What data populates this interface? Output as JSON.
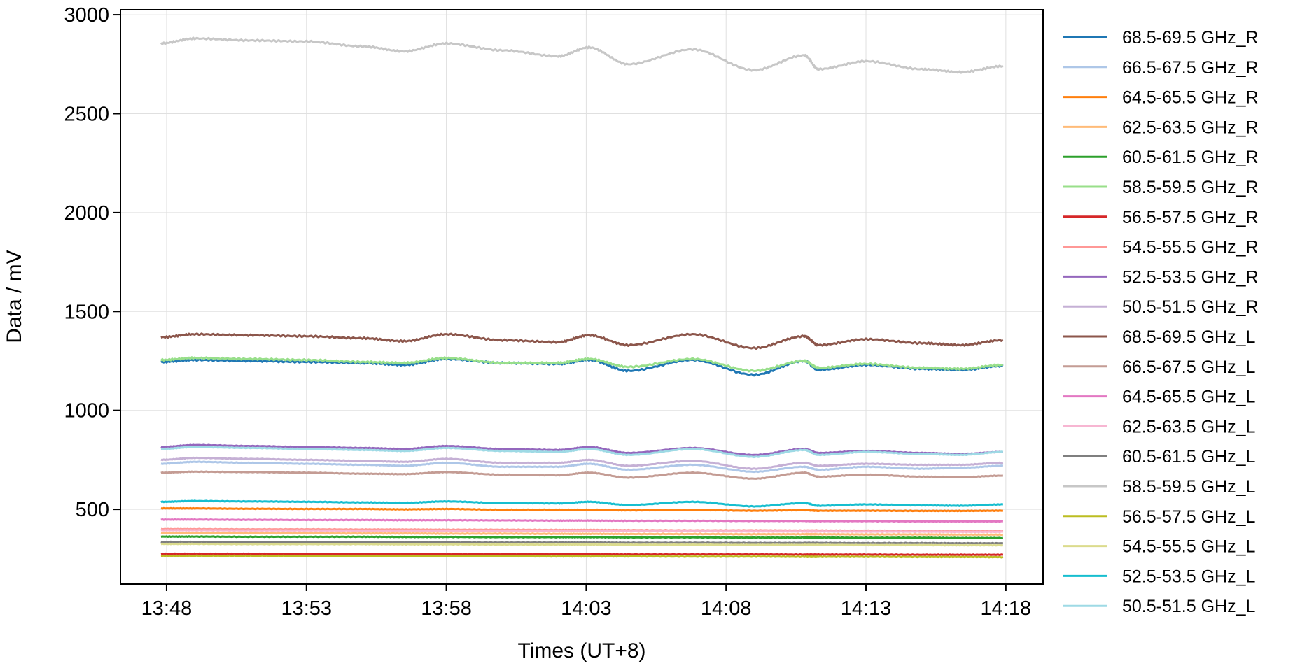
{
  "chart_data": {
    "type": "line",
    "title": "",
    "xlabel": "Times (UT+8)",
    "ylabel": "Data / mV",
    "x_unit": "minutes after 13:48",
    "xlim": [
      -1.65,
      31.33
    ],
    "ylim": [
      122,
      3025
    ],
    "grid": true,
    "legend_placement": "outside-right",
    "xticks": [
      {
        "value": 0,
        "label": "13:48"
      },
      {
        "value": 5,
        "label": "13:53"
      },
      {
        "value": 10,
        "label": "13:58"
      },
      {
        "value": 15,
        "label": "14:03"
      },
      {
        "value": 20,
        "label": "14:08"
      },
      {
        "value": 25,
        "label": "14:13"
      },
      {
        "value": 30,
        "label": "14:18"
      }
    ],
    "yticks": [
      {
        "value": 500,
        "label": "500"
      },
      {
        "value": 1000,
        "label": "1000"
      },
      {
        "value": 1500,
        "label": "1500"
      },
      {
        "value": 2000,
        "label": "2000"
      },
      {
        "value": 2500,
        "label": "2500"
      },
      {
        "value": 3000,
        "label": "3000"
      }
    ],
    "x": [
      -0.2,
      1,
      3,
      5,
      7,
      8.5,
      10,
      12,
      14,
      15.1,
      16.5,
      18.8,
      21,
      22.8,
      23.3,
      25,
      27,
      28.4,
      29.9
    ],
    "series": [
      {
        "name": "68.5-69.5 GHz_R",
        "color": "#1f77b4",
        "values": [
          1245,
          1255,
          1250,
          1245,
          1240,
          1230,
          1260,
          1240,
          1235,
          1255,
          1200,
          1255,
          1180,
          1250,
          1205,
          1230,
          1210,
          1205,
          1225
        ]
      },
      {
        "name": "66.5-67.5 GHz_R",
        "color": "#aec7e8",
        "values": [
          730,
          740,
          735,
          730,
          725,
          720,
          735,
          715,
          715,
          730,
          700,
          725,
          690,
          715,
          700,
          715,
          705,
          710,
          720
        ]
      },
      {
        "name": "64.5-65.5 GHz_R",
        "color": "#ff7f0e",
        "values": [
          505,
          505,
          503,
          502,
          502,
          500,
          502,
          498,
          498,
          498,
          495,
          497,
          493,
          496,
          493,
          493,
          492,
          492,
          493
        ]
      },
      {
        "name": "62.5-63.5 GHz_R",
        "color": "#ffbb78",
        "values": [
          380,
          380,
          379,
          379,
          378,
          378,
          377,
          377,
          376,
          376,
          375,
          375,
          374,
          374,
          374,
          373,
          373,
          372,
          372
        ]
      },
      {
        "name": "60.5-61.5 GHz_R",
        "color": "#2ca02c",
        "values": [
          362,
          362,
          361,
          361,
          361,
          360,
          360,
          359,
          359,
          359,
          358,
          358,
          357,
          357,
          357,
          356,
          356,
          355,
          355
        ]
      },
      {
        "name": "58.5-59.5 GHz_R",
        "color": "#98df8a",
        "values": [
          1255,
          1265,
          1260,
          1255,
          1245,
          1240,
          1265,
          1240,
          1240,
          1260,
          1220,
          1260,
          1200,
          1250,
          1215,
          1235,
          1215,
          1210,
          1230
        ]
      },
      {
        "name": "56.5-57.5 GHz_R",
        "color": "#d62728",
        "values": [
          275,
          275,
          275,
          274,
          274,
          274,
          273,
          273,
          273,
          273,
          272,
          272,
          272,
          271,
          271,
          271,
          270,
          270,
          270
        ]
      },
      {
        "name": "54.5-55.5 GHz_R",
        "color": "#ff9896",
        "values": [
          400,
          400,
          399,
          399,
          398,
          398,
          397,
          397,
          396,
          396,
          395,
          394,
          394,
          393,
          393,
          392,
          391,
          391,
          390
        ]
      },
      {
        "name": "52.5-53.5 GHz_R",
        "color": "#9467bd",
        "values": [
          815,
          825,
          820,
          815,
          810,
          805,
          820,
          805,
          800,
          815,
          785,
          810,
          775,
          805,
          785,
          795,
          785,
          780,
          790
        ]
      },
      {
        "name": "50.5-51.5 GHz_R",
        "color": "#c5b0d5",
        "values": [
          750,
          760,
          755,
          750,
          745,
          740,
          755,
          735,
          735,
          750,
          720,
          745,
          705,
          735,
          720,
          730,
          725,
          725,
          735
        ]
      },
      {
        "name": "68.5-69.5 GHz_L",
        "color": "#8c564b",
        "values": [
          1370,
          1385,
          1380,
          1375,
          1365,
          1350,
          1385,
          1355,
          1345,
          1380,
          1330,
          1385,
          1315,
          1375,
          1330,
          1360,
          1340,
          1330,
          1355
        ]
      },
      {
        "name": "66.5-67.5 GHz_L",
        "color": "#c49c94",
        "values": [
          685,
          690,
          688,
          685,
          680,
          678,
          688,
          675,
          672,
          685,
          660,
          685,
          655,
          685,
          665,
          675,
          665,
          663,
          670
        ]
      },
      {
        "name": "64.5-65.5 GHz_L",
        "color": "#e377c2",
        "values": [
          448,
          448,
          447,
          446,
          446,
          445,
          445,
          444,
          443,
          443,
          442,
          442,
          441,
          441,
          440,
          440,
          439,
          439,
          439
        ]
      },
      {
        "name": "62.5-63.5 GHz_L",
        "color": "#f7b6d2",
        "values": [
          394,
          394,
          393,
          393,
          392,
          392,
          391,
          391,
          390,
          390,
          389,
          389,
          388,
          388,
          388,
          387,
          387,
          386,
          386
        ]
      },
      {
        "name": "60.5-61.5 GHz_L",
        "color": "#7f7f7f",
        "values": [
          335,
          335,
          334,
          334,
          334,
          333,
          333,
          332,
          332,
          332,
          331,
          331,
          330,
          330,
          330,
          329,
          329,
          328,
          328
        ]
      },
      {
        "name": "58.5-59.5 GHz_L",
        "color": "#c7c7c7",
        "values": [
          2855,
          2880,
          2870,
          2865,
          2840,
          2815,
          2855,
          2820,
          2790,
          2835,
          2750,
          2825,
          2720,
          2795,
          2725,
          2765,
          2725,
          2710,
          2740
        ]
      },
      {
        "name": "56.5-57.5 GHz_L",
        "color": "#bcbd22",
        "values": [
          265,
          265,
          265,
          264,
          264,
          264,
          263,
          263,
          262,
          262,
          262,
          261,
          261,
          260,
          260,
          260,
          259,
          259,
          258
        ]
      },
      {
        "name": "54.5-55.5 GHz_L",
        "color": "#dbdb8d",
        "values": [
          325,
          325,
          324,
          324,
          324,
          323,
          323,
          322,
          322,
          322,
          321,
          321,
          320,
          320,
          320,
          319,
          319,
          318,
          318
        ]
      },
      {
        "name": "52.5-53.5 GHz_L",
        "color": "#17becf",
        "values": [
          538,
          542,
          540,
          538,
          535,
          533,
          540,
          532,
          530,
          538,
          522,
          538,
          515,
          532,
          518,
          525,
          520,
          518,
          525
        ]
      },
      {
        "name": "50.5-51.5 GHz_L",
        "color": "#9edae5",
        "values": [
          805,
          815,
          810,
          805,
          800,
          795,
          810,
          795,
          790,
          805,
          775,
          805,
          765,
          800,
          775,
          790,
          780,
          775,
          790
        ]
      }
    ]
  }
}
